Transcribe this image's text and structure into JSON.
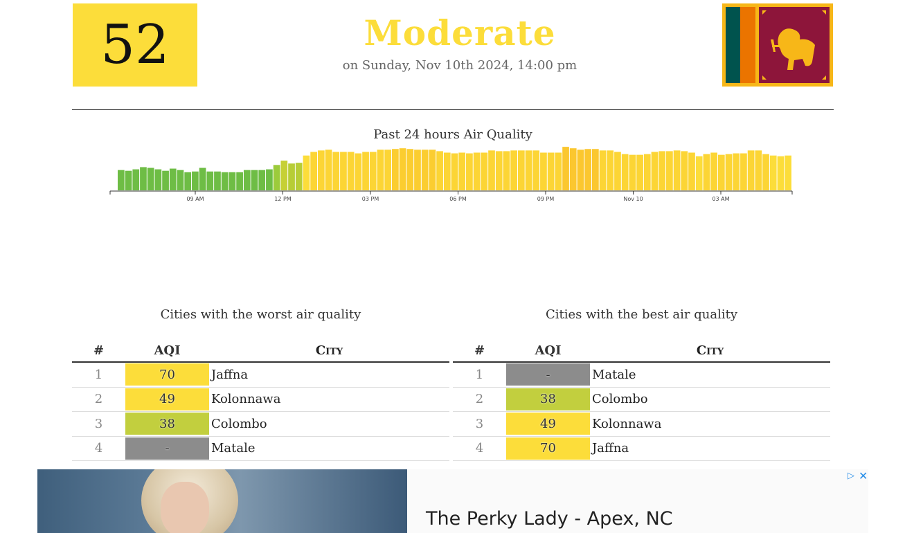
{
  "current": {
    "aqi": "52",
    "status": "Moderate",
    "updated": "on Sunday, Nov 10th 2024, 14:00 pm",
    "color": "#fcdd3a"
  },
  "flag": {
    "icon": "sri-lanka-flag-icon"
  },
  "chart_data": {
    "type": "bar",
    "title": "Past 24 hours Air Quality",
    "x_tick_labels": [
      "09 AM",
      "12 PM",
      "03 PM",
      "06 PM",
      "09 PM",
      "Nov 10",
      "03 AM"
    ],
    "values": [
      28,
      27,
      29,
      32,
      31,
      29,
      27,
      30,
      28,
      25,
      26,
      31,
      26,
      26,
      25,
      25,
      25,
      28,
      28,
      28,
      29,
      35,
      41,
      37,
      38,
      48,
      53,
      55,
      56,
      53,
      53,
      53,
      51,
      53,
      53,
      56,
      56,
      57,
      58,
      57,
      56,
      56,
      56,
      54,
      52,
      51,
      52,
      51,
      52,
      52,
      55,
      54,
      54,
      55,
      55,
      55,
      55,
      52,
      52,
      52,
      60,
      58,
      56,
      57,
      57,
      55,
      55,
      53,
      50,
      49,
      49,
      50,
      53,
      54,
      54,
      55,
      54,
      52,
      47,
      50,
      52,
      49,
      50,
      51,
      51,
      55,
      55,
      50,
      48,
      47,
      48
    ],
    "colors": [
      "#6ebd45",
      "#6ebd45",
      "#6ebd45",
      "#6ebd45",
      "#6ebd45",
      "#6ebd45",
      "#6ebd45",
      "#6ebd45",
      "#6ebd45",
      "#6ebd45",
      "#6ebd45",
      "#6ebd45",
      "#6ebd45",
      "#6ebd45",
      "#6ebd45",
      "#6ebd45",
      "#6ebd45",
      "#6ebd45",
      "#6ebd45",
      "#6ebd45",
      "#6ebd45",
      "#9ccb3b",
      "#c6d035",
      "#b7cd36",
      "#b7cd36",
      "#fcdd3a",
      "#fcd535",
      "#fcd535",
      "#fcd535",
      "#fcd535",
      "#fcd535",
      "#fcd535",
      "#fcd535",
      "#fcd535",
      "#fcd535",
      "#fcd535",
      "#fcd535",
      "#fbcd30",
      "#fbcd30",
      "#fbcd30",
      "#fbcd30",
      "#fbcd30",
      "#fbcd30",
      "#fcd535",
      "#fcd535",
      "#fcd535",
      "#fcd535",
      "#fcd535",
      "#fcd535",
      "#fcd535",
      "#fcd535",
      "#fcd535",
      "#fcd535",
      "#fcd535",
      "#fcd535",
      "#fcd535",
      "#fcd535",
      "#fcd535",
      "#fcd535",
      "#fcd535",
      "#fbc72f",
      "#fbc72f",
      "#fbc72f",
      "#fbc72f",
      "#fbc72f",
      "#fcd535",
      "#fcd535",
      "#fcd535",
      "#fcd535",
      "#fcd535",
      "#fcd535",
      "#fcd535",
      "#fcd535",
      "#fcd535",
      "#fcd535",
      "#fcd535",
      "#fcd535",
      "#fcd535",
      "#fcdd3a",
      "#fcd535",
      "#fcd535",
      "#fcd535",
      "#fcd535",
      "#fcd535",
      "#fcd535",
      "#fcd535",
      "#fcd535",
      "#fcd535",
      "#fcdd3a",
      "#fcdd3a",
      "#fcdd3a"
    ],
    "ylim": [
      0,
      62
    ],
    "grid": false
  },
  "worst": {
    "title": "Cities with the worst air quality",
    "headers": {
      "num": "#",
      "aqi": "AQI",
      "city": "City"
    },
    "rows": [
      {
        "num": "1",
        "aqi": "70",
        "city": "Jaffna",
        "color": "#fcdd3a"
      },
      {
        "num": "2",
        "aqi": "49",
        "city": "Kolonnawa",
        "color": "#fcdd3a"
      },
      {
        "num": "3",
        "aqi": "38",
        "city": "Colombo",
        "color": "#c2cf3e"
      },
      {
        "num": "4",
        "aqi": "-",
        "city": "Matale",
        "color": "#8c8c8c"
      }
    ]
  },
  "best": {
    "title": "Cities with the best air quality",
    "headers": {
      "num": "#",
      "aqi": "AQI",
      "city": "City"
    },
    "rows": [
      {
        "num": "1",
        "aqi": "-",
        "city": "Matale",
        "color": "#8c8c8c"
      },
      {
        "num": "2",
        "aqi": "38",
        "city": "Colombo",
        "color": "#c2cf3e"
      },
      {
        "num": "3",
        "aqi": "49",
        "city": "Kolonnawa",
        "color": "#fcdd3a"
      },
      {
        "num": "4",
        "aqi": "70",
        "city": "Jaffna",
        "color": "#fcdd3a"
      }
    ]
  },
  "ad": {
    "headline": "The Perky Lady - Apex, NC",
    "play_icon": "ad-choices-icon",
    "close_icon": "close-icon"
  }
}
